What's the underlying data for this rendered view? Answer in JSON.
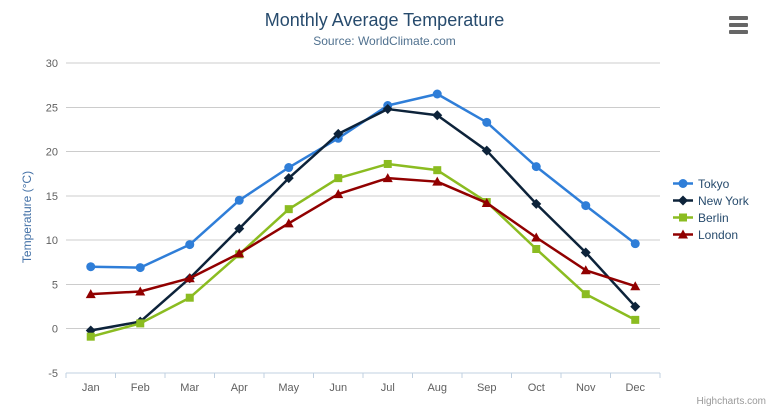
{
  "header": {
    "title": "Monthly Average Temperature",
    "subtitle": "Source: WorldClimate.com"
  },
  "credits": "Highcharts.com",
  "export_menu": {
    "icon": "hamburger-menu-icon"
  },
  "chart_data": {
    "type": "line",
    "title": "Monthly Average Temperature",
    "subtitle": "Source: WorldClimate.com",
    "categories": [
      "Jan",
      "Feb",
      "Mar",
      "Apr",
      "May",
      "Jun",
      "Jul",
      "Aug",
      "Sep",
      "Oct",
      "Nov",
      "Dec"
    ],
    "series": [
      {
        "name": "Tokyo",
        "color": "#2f7ed8",
        "marker": "circle",
        "values": [
          7.0,
          6.9,
          9.5,
          14.5,
          18.2,
          21.5,
          25.2,
          26.5,
          23.3,
          18.3,
          13.9,
          9.6
        ]
      },
      {
        "name": "New York",
        "color": "#0d233a",
        "marker": "diamond",
        "values": [
          -0.2,
          0.8,
          5.7,
          11.3,
          17.0,
          22.0,
          24.8,
          24.1,
          20.1,
          14.1,
          8.6,
          2.5
        ]
      },
      {
        "name": "Berlin",
        "color": "#8bbc21",
        "marker": "square",
        "values": [
          -0.9,
          0.6,
          3.5,
          8.4,
          13.5,
          17.0,
          18.6,
          17.9,
          14.3,
          9.0,
          3.9,
          1.0
        ]
      },
      {
        "name": "London",
        "color": "#910000",
        "marker": "triangle",
        "values": [
          3.9,
          4.2,
          5.7,
          8.5,
          11.9,
          15.2,
          17.0,
          16.6,
          14.2,
          10.3,
          6.6,
          4.8
        ]
      }
    ],
    "xlabel": "",
    "ylabel": "Temperature (°C)",
    "ylim": [
      -5,
      30
    ],
    "ytick_interval": 5,
    "yticks": [
      -5,
      0,
      5,
      10,
      15,
      20,
      25,
      30
    ],
    "grid": true,
    "legend_position": "right",
    "colors": {
      "grid_line": "#cccccc",
      "axis_line": "#c0d0e0",
      "axis_label": "#606060",
      "title": "#274b6d",
      "subtitle": "#50718f",
      "yaxis_title": "#4572a7",
      "legend_text": "#274b6d",
      "credits_text": "#999999"
    }
  }
}
